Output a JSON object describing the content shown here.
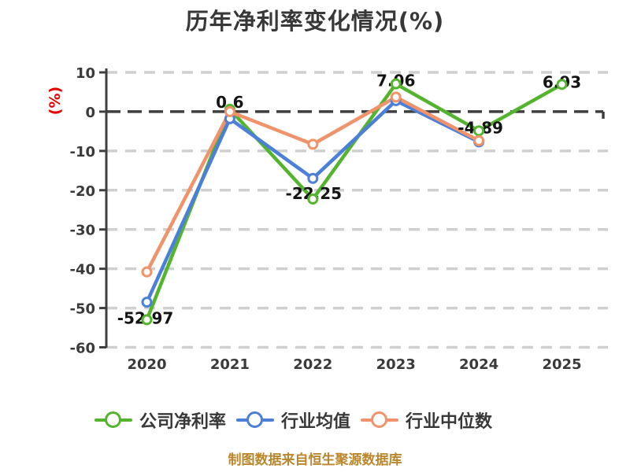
{
  "chart_data": {
    "type": "line",
    "title": "历年净利率变化情况(%)",
    "ylabel": "(%)",
    "xlabel": "",
    "categories": [
      "2020",
      "2021",
      "2022",
      "2023",
      "2024",
      "2025"
    ],
    "series": [
      {
        "name": "公司净利率",
        "color": "#55b42e",
        "values": [
          -52.97,
          0.6,
          -22.25,
          7.06,
          -4.89,
          6.93
        ]
      },
      {
        "name": "行业均值",
        "color": "#4b7fd8",
        "values": [
          -48.5,
          -1.8,
          -17.0,
          2.8,
          -7.7,
          null
        ]
      },
      {
        "name": "行业中位数",
        "color": "#f0926a",
        "values": [
          -40.8,
          0.0,
          -8.3,
          3.7,
          -7.4,
          null
        ]
      }
    ],
    "point_labels": [
      "-52.97",
      "0.6",
      "-22.25",
      "7.06",
      "-4.89",
      "6.93"
    ],
    "labeled_series": "公司净利率",
    "ylim": [
      -60,
      10
    ],
    "yticks": [
      10,
      0,
      -10,
      -20,
      -30,
      -40,
      -50,
      -60
    ],
    "grid": "horizontal-dashed",
    "legend_position": "bottom"
  },
  "colors": {
    "background": "#ffffff",
    "axis": "#3f3f3f",
    "grid": "#cfcfcf",
    "zero_line": "#3f3f3f",
    "title_text": "#383838",
    "tick_label": "#3a3a3a",
    "point_label": "#141414",
    "ylabel_red": "#e60000",
    "footer_text": "#b9862c",
    "marker_fill": "#ffffff"
  },
  "footer": {
    "text": "制图数据来自恒生聚源数据库"
  }
}
